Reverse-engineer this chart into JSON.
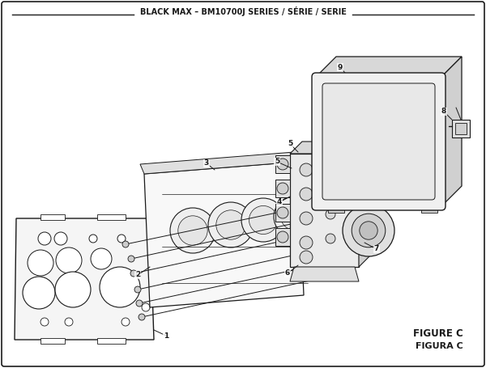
{
  "title": "BLACK MAX – BM10700J SERIES / SÉRIE / SERIE",
  "figure_label": "FIGURE C",
  "figura_label": "FIGURA C",
  "bg_color": "#ffffff",
  "lc": "#1a1a1a",
  "fig_width": 6.0,
  "fig_height": 4.55,
  "dpi": 100
}
